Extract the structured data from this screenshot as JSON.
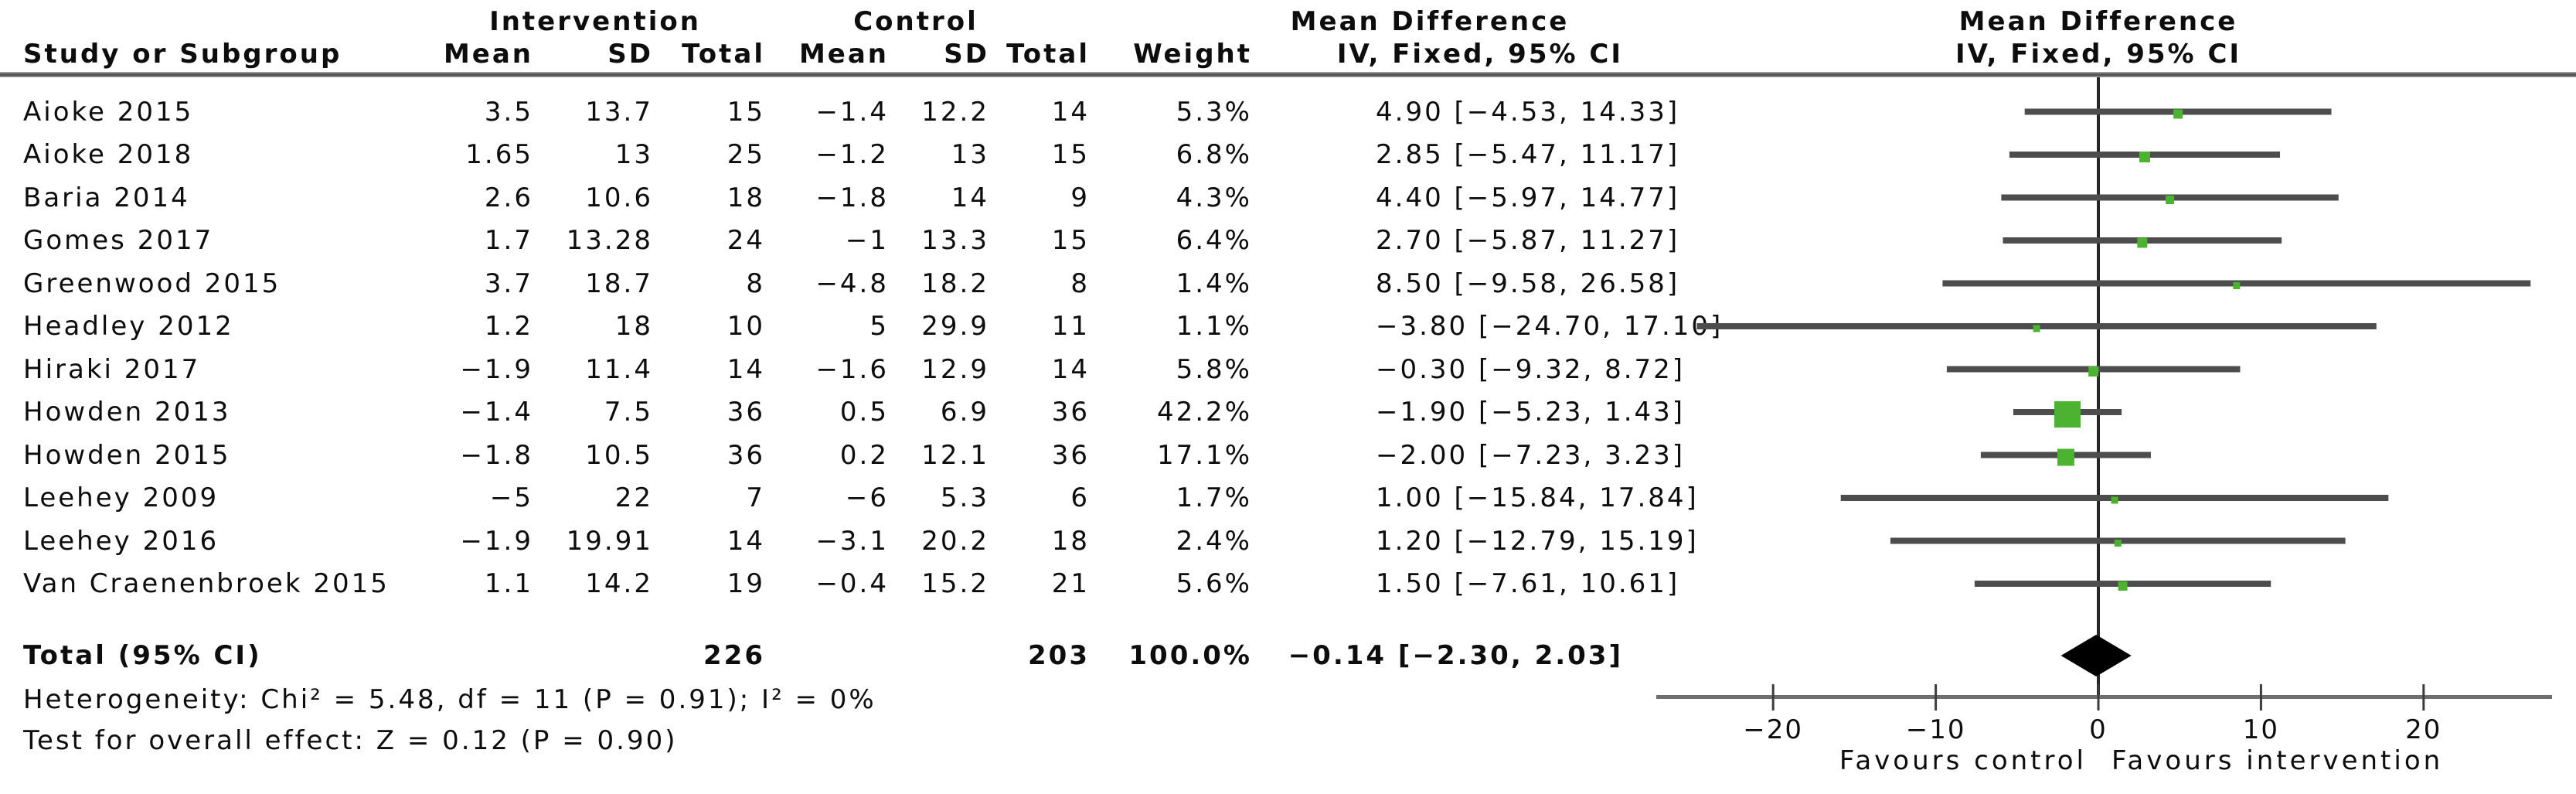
{
  "figure": {
    "headers": {
      "group_intervention": "Intervention",
      "group_control": "Control",
      "mean_difference": "Mean Difference",
      "method_line": "IV, Fixed, 95% CI",
      "col_study": "Study or Subgroup",
      "col_mean": "Mean",
      "col_sd": "SD",
      "col_total": "Total",
      "col_weight": "Weight"
    }
  },
  "chart_data": {
    "type": "forest",
    "title": "Mean Difference — IV, Fixed, 95% CI",
    "x_axis": {
      "ticks": [
        -20,
        -10,
        0,
        10,
        20
      ],
      "min": -27.3,
      "max": 27.9,
      "favours_left": "Favours control",
      "favours_right": "Favours intervention",
      "grid": false
    },
    "studies": [
      {
        "name": "Aioke 2015",
        "i_mean": "3.5",
        "i_sd": "13.7",
        "i_total": "15",
        "c_mean": "−1.4",
        "c_sd": "12.2",
        "c_total": "14",
        "weight": "5.3%",
        "weight_value": 5.3,
        "ci_label": "4.90 [−4.53, 14.33]",
        "md": 4.9,
        "lo": -4.53,
        "hi": 14.33
      },
      {
        "name": "Aioke 2018",
        "i_mean": "1.65",
        "i_sd": "13",
        "i_total": "25",
        "c_mean": "−1.2",
        "c_sd": "13",
        "c_total": "15",
        "weight": "6.8%",
        "weight_value": 6.8,
        "ci_label": "2.85 [−5.47, 11.17]",
        "md": 2.85,
        "lo": -5.47,
        "hi": 11.17
      },
      {
        "name": "Baria 2014",
        "i_mean": "2.6",
        "i_sd": "10.6",
        "i_total": "18",
        "c_mean": "−1.8",
        "c_sd": "14",
        "c_total": "9",
        "weight": "4.3%",
        "weight_value": 4.3,
        "ci_label": "4.40 [−5.97, 14.77]",
        "md": 4.4,
        "lo": -5.97,
        "hi": 14.77
      },
      {
        "name": "Gomes 2017",
        "i_mean": "1.7",
        "i_sd": "13.28",
        "i_total": "24",
        "c_mean": "−1",
        "c_sd": "13.3",
        "c_total": "15",
        "weight": "6.4%",
        "weight_value": 6.4,
        "ci_label": "2.70 [−5.87, 11.27]",
        "md": 2.7,
        "lo": -5.87,
        "hi": 11.27
      },
      {
        "name": "Greenwood 2015",
        "i_mean": "3.7",
        "i_sd": "18.7",
        "i_total": "8",
        "c_mean": "−4.8",
        "c_sd": "18.2",
        "c_total": "8",
        "weight": "1.4%",
        "weight_value": 1.4,
        "ci_label": "8.50 [−9.58, 26.58]",
        "md": 8.5,
        "lo": -9.58,
        "hi": 26.58
      },
      {
        "name": "Headley 2012",
        "i_mean": "1.2",
        "i_sd": "18",
        "i_total": "10",
        "c_mean": "5",
        "c_sd": "29.9",
        "c_total": "11",
        "weight": "1.1%",
        "weight_value": 1.1,
        "ci_label": "−3.80 [−24.70, 17.10]",
        "md": -3.8,
        "lo": -24.7,
        "hi": 17.1
      },
      {
        "name": "Hiraki 2017",
        "i_mean": "−1.9",
        "i_sd": "11.4",
        "i_total": "14",
        "c_mean": "−1.6",
        "c_sd": "12.9",
        "c_total": "14",
        "weight": "5.8%",
        "weight_value": 5.8,
        "ci_label": "−0.30 [−9.32, 8.72]",
        "md": -0.3,
        "lo": -9.32,
        "hi": 8.72
      },
      {
        "name": "Howden 2013",
        "i_mean": "−1.4",
        "i_sd": "7.5",
        "i_total": "36",
        "c_mean": "0.5",
        "c_sd": "6.9",
        "c_total": "36",
        "weight": "42.2%",
        "weight_value": 42.2,
        "ci_label": "−1.90 [−5.23, 1.43]",
        "md": -1.9,
        "lo": -5.23,
        "hi": 1.43
      },
      {
        "name": "Howden 2015",
        "i_mean": "−1.8",
        "i_sd": "10.5",
        "i_total": "36",
        "c_mean": "0.2",
        "c_sd": "12.1",
        "c_total": "36",
        "weight": "17.1%",
        "weight_value": 17.1,
        "ci_label": "−2.00 [−7.23, 3.23]",
        "md": -2.0,
        "lo": -7.23,
        "hi": 3.23
      },
      {
        "name": "Leehey 2009",
        "i_mean": "−5",
        "i_sd": "22",
        "i_total": "7",
        "c_mean": "−6",
        "c_sd": "5.3",
        "c_total": "6",
        "weight": "1.7%",
        "weight_value": 1.7,
        "ci_label": "1.00 [−15.84, 17.84]",
        "md": 1.0,
        "lo": -15.84,
        "hi": 17.84
      },
      {
        "name": "Leehey 2016",
        "i_mean": "−1.9",
        "i_sd": "19.91",
        "i_total": "14",
        "c_mean": "−3.1",
        "c_sd": "20.2",
        "c_total": "18",
        "weight": "2.4%",
        "weight_value": 2.4,
        "ci_label": "1.20 [−12.79, 15.19]",
        "md": 1.2,
        "lo": -12.79,
        "hi": 15.19
      },
      {
        "name": "Van Craenenbroek 2015",
        "i_mean": "1.1",
        "i_sd": "14.2",
        "i_total": "19",
        "c_mean": "−0.4",
        "c_sd": "15.2",
        "c_total": "21",
        "weight": "5.6%",
        "weight_value": 5.6,
        "ci_label": "1.50 [−7.61, 10.61]",
        "md": 1.5,
        "lo": -7.61,
        "hi": 10.61
      }
    ],
    "total": {
      "label": "Total (95% CI)",
      "i_total": "226",
      "c_total": "203",
      "weight": "100.0%",
      "ci_label": "−0.14 [−2.30, 2.03]",
      "md": -0.135,
      "lo": -2.3,
      "hi": 2.03
    },
    "heterogeneity": "Heterogeneity: Chi² = 5.48, df = 11 (P = 0.91); I² = 0%",
    "overall_effect": "Test for overall effect: Z = 0.12 (P = 0.90)",
    "colors": {
      "marker": "#4cb330",
      "ci_line": "#4d4d4d",
      "axis": "#6f6f6f",
      "zero_line": "#262626",
      "diamond": "#000000"
    }
  }
}
